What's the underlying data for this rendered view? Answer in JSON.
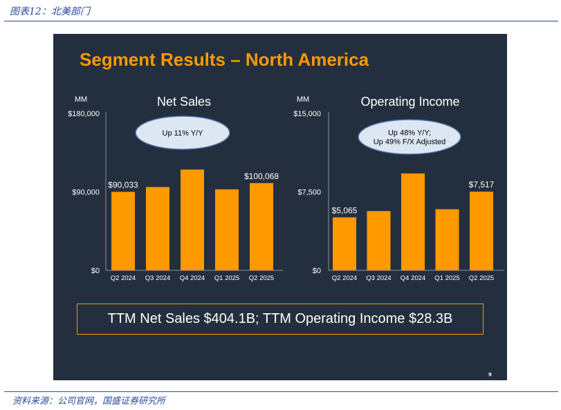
{
  "header": {
    "title": "图表12：北美部门"
  },
  "footer": {
    "source": "资料来源：公司官网，国盛证券研究所"
  },
  "slide": {
    "title": "Segment Results – North America",
    "page_number": "9",
    "ttm_text": "TTM Net Sales $404.1B; TTM Operating Income $28.3B"
  },
  "colors": {
    "bar": "#ff9900",
    "background": "#232f3e",
    "bubble": "#dde6f3",
    "accent": "#ff9900"
  },
  "chart_data": [
    {
      "type": "bar",
      "title": "Net Sales",
      "ylabel": "MM",
      "categories": [
        "Q2 2024",
        "Q3 2024",
        "Q4 2024",
        "Q1 2025",
        "Q2 2025"
      ],
      "values": [
        90033,
        95537,
        115586,
        92887,
        100068
      ],
      "ylim": [
        0,
        180000
      ],
      "yticks": [
        "$0",
        "$90,000",
        "$180,000"
      ],
      "data_labels": [
        {
          "index": 0,
          "text": "$90,033"
        },
        {
          "index": 4,
          "text": "$100,068"
        }
      ],
      "annotation": [
        "Up 11% Y/Y"
      ]
    },
    {
      "type": "bar",
      "title": "Operating Income",
      "ylabel": "MM",
      "categories": [
        "Q2 2024",
        "Q3 2024",
        "Q4 2024",
        "Q1 2025",
        "Q2 2025"
      ],
      "values": [
        5065,
        5663,
        9262,
        5841,
        7517
      ],
      "ylim": [
        0,
        15000
      ],
      "yticks": [
        "$0",
        "$7,500",
        "$15,000"
      ],
      "data_labels": [
        {
          "index": 0,
          "text": "$5,065"
        },
        {
          "index": 4,
          "text": "$7,517"
        }
      ],
      "annotation": [
        "Up 48% Y/Y;",
        "Up 49% F/X Adjusted"
      ]
    }
  ]
}
